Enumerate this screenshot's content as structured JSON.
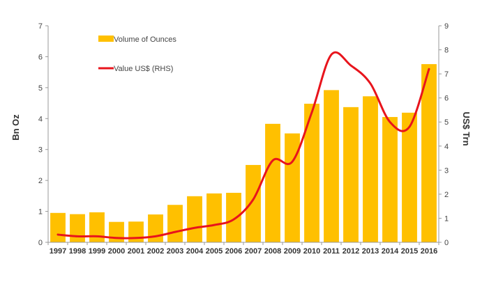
{
  "chart_data": {
    "type": "bar",
    "categories": [
      "1997",
      "1998",
      "1999",
      "2000",
      "2001",
      "2002",
      "2003",
      "2004",
      "2005",
      "2006",
      "2007",
      "2008",
      "2009",
      "2010",
      "2011",
      "2012",
      "2013",
      "2014",
      "2015",
      "2016"
    ],
    "series": [
      {
        "name": "Volume of Ounces",
        "type": "bar",
        "axis": "left",
        "color": "#FFC000",
        "values": [
          0.95,
          0.91,
          0.97,
          0.66,
          0.67,
          0.9,
          1.21,
          1.49,
          1.58,
          1.6,
          2.5,
          3.83,
          3.52,
          4.48,
          4.92,
          4.37,
          4.72,
          4.05,
          4.19,
          5.76
        ]
      },
      {
        "name": "Value US$ (RHS)",
        "type": "line",
        "axis": "right",
        "color": "#E8141C",
        "values": [
          0.32,
          0.25,
          0.25,
          0.18,
          0.18,
          0.25,
          0.43,
          0.6,
          0.72,
          0.95,
          1.78,
          3.4,
          3.35,
          5.4,
          7.8,
          7.35,
          6.6,
          5.0,
          4.8,
          7.2
        ]
      }
    ],
    "ylabel": "Bn Oz",
    "y2label": "US$ Trn",
    "ylim": [
      0,
      7
    ],
    "yticks": [
      "0",
      "1",
      "2",
      "3",
      "4",
      "5",
      "6",
      "7"
    ],
    "y2lim": [
      0,
      9
    ],
    "y2ticks": [
      "0",
      "1",
      "2",
      "3",
      "4",
      "5",
      "6",
      "7",
      "8",
      "9"
    ],
    "grid": false,
    "legend_position": "top-left"
  }
}
